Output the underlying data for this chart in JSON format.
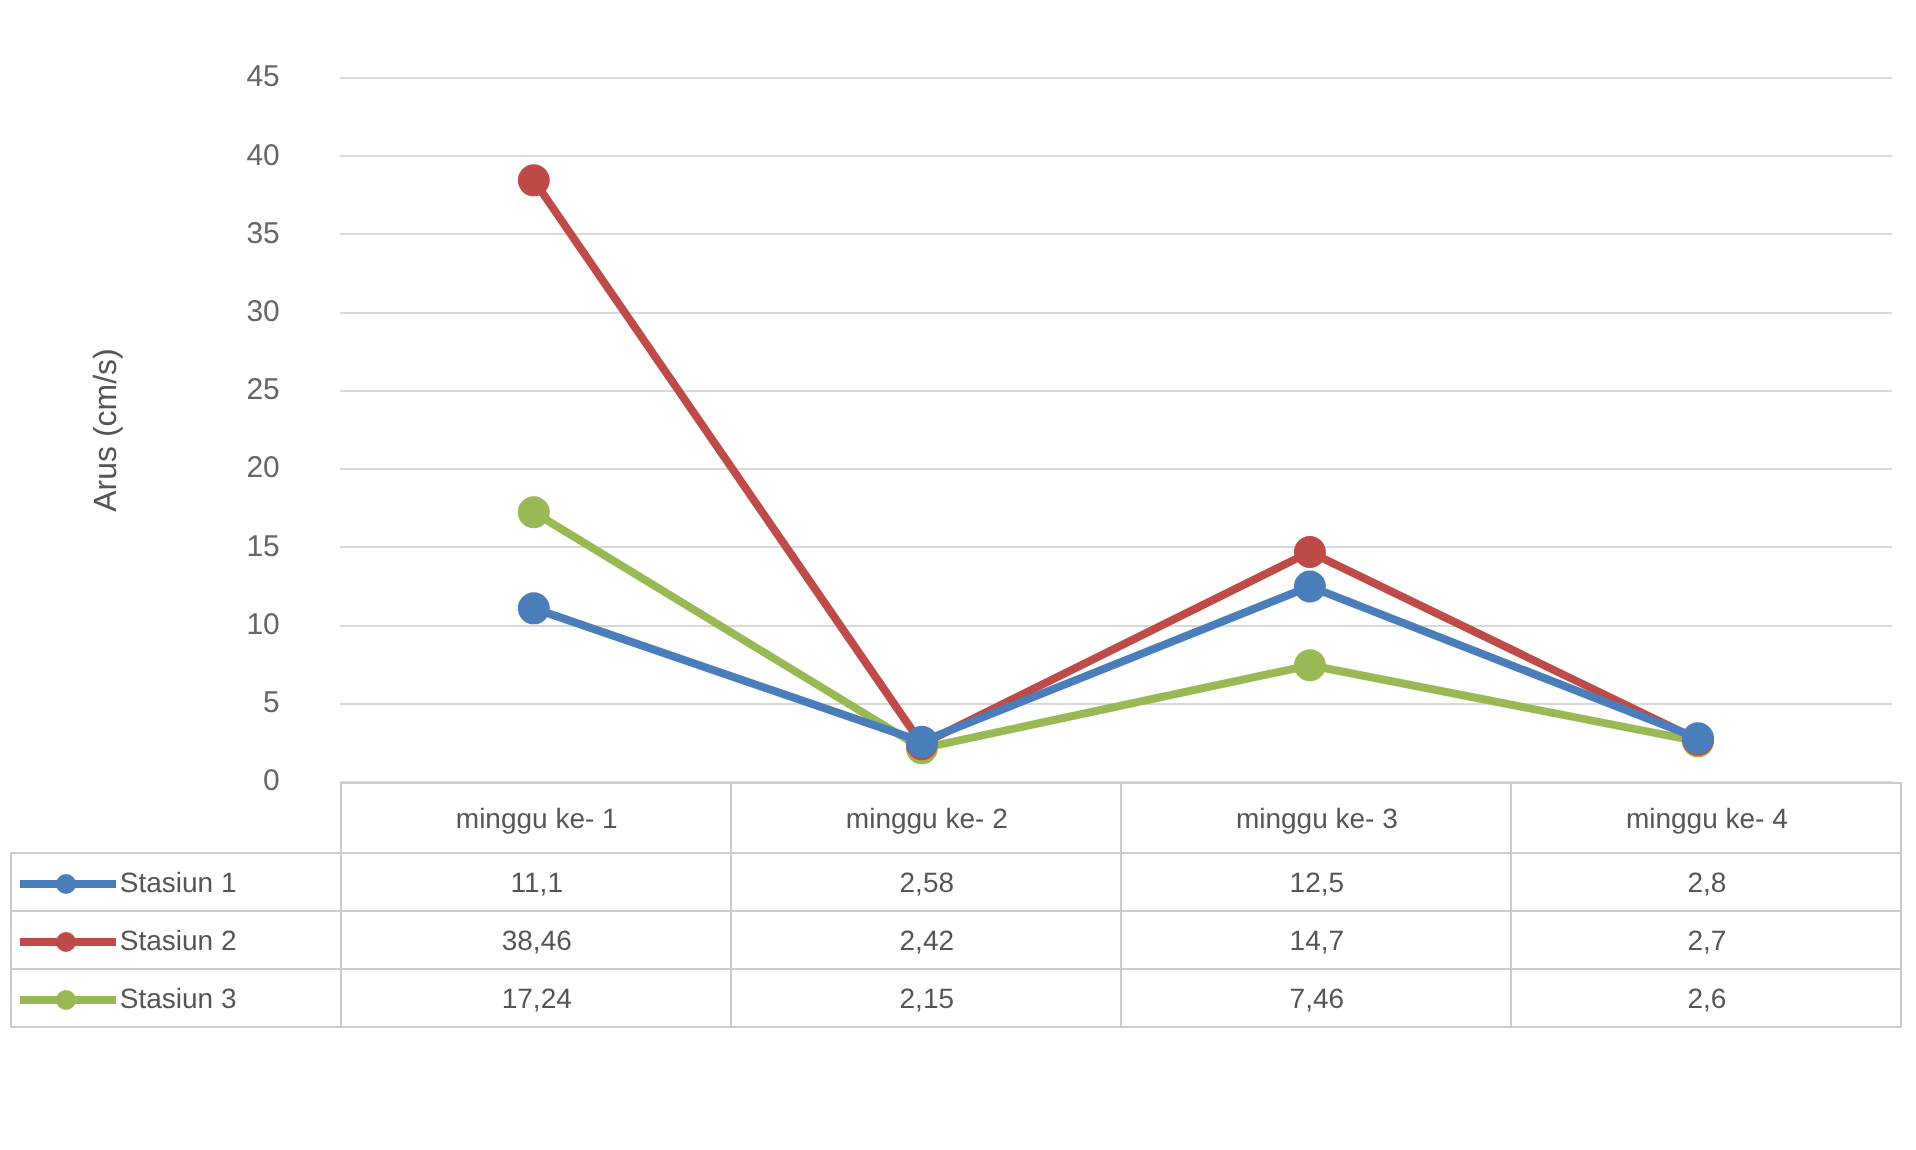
{
  "chart_data": {
    "type": "line",
    "ylabel": "Arus (cm/s)",
    "categories": [
      "minggu ke- 1",
      "minggu ke- 2",
      "minggu ke- 3",
      "minggu ke- 4"
    ],
    "series": [
      {
        "name": "Stasiun 1",
        "color": "#4a7ebb",
        "values": [
          11.1,
          2.58,
          12.5,
          2.8
        ],
        "value_labels": [
          "11,1",
          "2,58",
          "12,5",
          "2,8"
        ]
      },
      {
        "name": "Stasiun 2",
        "color": "#be4b48",
        "values": [
          38.46,
          2.42,
          14.7,
          2.7
        ],
        "value_labels": [
          "38,46",
          "2,42",
          "14,7",
          "2,7"
        ]
      },
      {
        "name": "Stasiun 3",
        "color": "#98b954",
        "values": [
          17.24,
          2.15,
          7.46,
          2.6
        ],
        "value_labels": [
          "17,24",
          "2,15",
          "7,46",
          "2,6"
        ]
      }
    ],
    "ylim": [
      0,
      45
    ],
    "yticks": [
      0,
      5,
      10,
      15,
      20,
      25,
      30,
      35,
      40,
      45
    ],
    "grid": "y",
    "legend": "bottom",
    "marker": "circle",
    "line_style": "solid"
  }
}
